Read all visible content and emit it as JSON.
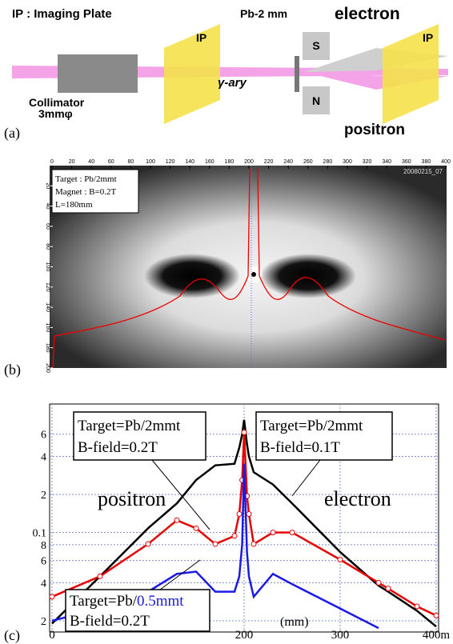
{
  "panel_a": {
    "legend": "IP : Imaging Plate",
    "ip_1": "IP",
    "converter": "Pb-2 mm",
    "magnet_s": "S",
    "magnet_n": "N",
    "electron": "electron",
    "ip_2": "IP",
    "positron": "positron",
    "gamma": "γ-ary",
    "collimator": "Collimator",
    "collimator_size": "3mmφ",
    "label": "(a)"
  },
  "panel_b": {
    "info": [
      "Target  : Pb/2mmt",
      "Magnet : B=0.2T",
      "L=180mm"
    ],
    "id": "20080215_07",
    "top_ticks": [
      0,
      20,
      40,
      60,
      80,
      100,
      120,
      140,
      160,
      180,
      200,
      220,
      240,
      260,
      280,
      300,
      320,
      340,
      360,
      380,
      400
    ],
    "left_ticks": [
      20,
      40,
      60,
      80,
      100,
      120,
      140,
      160,
      180,
      200
    ],
    "label": "(b)"
  },
  "chart_data": {
    "type": "line",
    "log_y": true,
    "grid": true,
    "x": [
      0,
      50,
      100,
      130,
      150,
      170,
      190,
      195,
      198,
      200,
      203,
      205,
      210,
      230,
      250,
      300,
      340,
      350,
      380,
      400
    ],
    "series": [
      {
        "color": "#000000",
        "values": [
          0.019,
          0.045,
          0.108,
          0.17,
          0.26,
          0.34,
          0.35,
          0.47,
          0.6,
          0.78,
          0.5,
          0.4,
          0.3,
          0.24,
          0.17,
          0.07,
          0.038,
          0.034,
          0.024,
          0.018
        ]
      },
      {
        "color": "#e60000",
        "marker": "circle",
        "values": [
          0.031,
          0.045,
          0.081,
          0.125,
          0.108,
          0.081,
          0.094,
          0.14,
          0.26,
          0.62,
          0.194,
          0.14,
          0.081,
          0.1,
          0.1,
          0.061,
          0.04,
          0.036,
          0.026,
          0.022
        ]
      },
      {
        "color": "#1a1ae6",
        "values": [
          0.02,
          0.025,
          0.034,
          0.047,
          0.049,
          0.034,
          0.034,
          0.045,
          0.081,
          0.35,
          0.07,
          0.045,
          0.031,
          0.047,
          0.039,
          0.025,
          0.0175,
          null,
          null,
          null
        ]
      }
    ],
    "xlim": [
      0,
      400
    ],
    "ylim": [
      0.0163,
      1.04
    ],
    "xticks": [
      0,
      200,
      300,
      {
        "value": 400,
        "label": "400m"
      }
    ],
    "yticks": [
      {
        "value": 0.02,
        "label": "2"
      },
      {
        "value": 0.04,
        "label": "4"
      },
      {
        "value": 0.06,
        "label": "6"
      },
      {
        "value": 0.08,
        "label": "8"
      },
      0.1,
      {
        "value": 0.2,
        "label": "2"
      },
      {
        "value": 0.4,
        "label": "4"
      },
      {
        "value": 0.6,
        "label": "6"
      }
    ],
    "x_label": "(mm)",
    "annotations": {
      "box_1": [
        "Target=Pb/2mmt",
        "B-field=0.2T"
      ],
      "box_2": [
        "Target=Pb/2mmt",
        "B-field=0.1T"
      ],
      "box_3_target": "Target=Pb/",
      "box_3_thickness": "0.5mmt",
      "box_3_field": "B-field=0.2T",
      "positron": "positron",
      "electron": "electron"
    },
    "label": "(c)"
  }
}
